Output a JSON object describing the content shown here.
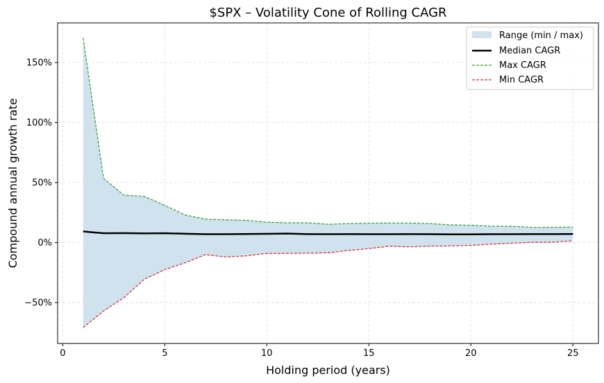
{
  "chart_data": {
    "type": "area",
    "title": "$SPX – Volatility Cone of Rolling CAGR",
    "xlabel": "Holding period (years)",
    "ylabel": "Compound annual growth rate",
    "xlim": [
      -0.25,
      26.25
    ],
    "ylim": [
      -84,
      183
    ],
    "x_ticks": [
      0,
      5,
      10,
      15,
      20,
      25
    ],
    "y_ticks": [
      -50,
      0,
      50,
      100,
      150
    ],
    "y_tick_labels": [
      "−50%",
      "0%",
      "50%",
      "100%",
      "150%"
    ],
    "grid": true,
    "legend_position": "top-right",
    "x": [
      1,
      2,
      3,
      4,
      5,
      6,
      7,
      8,
      9,
      10,
      11,
      12,
      13,
      14,
      15,
      16,
      17,
      18,
      19,
      20,
      21,
      22,
      23,
      24,
      25
    ],
    "series": [
      {
        "name": "Range (min / max)",
        "kind": "band",
        "color": "#cfe2ee"
      },
      {
        "name": "Median CAGR",
        "kind": "line",
        "color": "#000000",
        "values": [
          9.3,
          7.8,
          7.9,
          7.7,
          7.8,
          7.4,
          7.0,
          7.0,
          7.2,
          7.3,
          7.5,
          7.1,
          7.0,
          7.1,
          7.0,
          7.0,
          7.1,
          7.0,
          6.9,
          6.9,
          7.0,
          7.0,
          7.1,
          7.1,
          7.2
        ]
      },
      {
        "name": "Max CAGR",
        "kind": "dashed",
        "color": "#2ca02c",
        "values": [
          170.5,
          53.5,
          39.5,
          38.5,
          31.0,
          23.0,
          19.5,
          19.0,
          18.5,
          17.0,
          16.5,
          16.5,
          15.3,
          15.8,
          16.2,
          16.3,
          16.3,
          15.8,
          14.8,
          14.5,
          13.7,
          13.6,
          12.7,
          12.7,
          13.0
        ]
      },
      {
        "name": "Min CAGR",
        "kind": "dashed",
        "color": "#d62728",
        "values": [
          -70.8,
          -57.0,
          -45.8,
          -30.5,
          -22.5,
          -16.8,
          -10.0,
          -12.0,
          -11.0,
          -9.0,
          -9.0,
          -8.8,
          -8.5,
          -6.5,
          -5.0,
          -3.0,
          -3.5,
          -3.0,
          -2.8,
          -2.3,
          -1.3,
          -0.5,
          0.3,
          0.3,
          1.5
        ]
      }
    ]
  }
}
